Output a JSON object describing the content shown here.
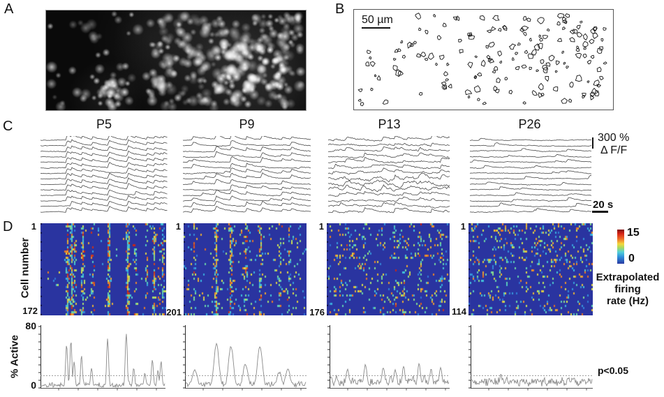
{
  "panels": {
    "a": {
      "label": "A"
    },
    "b": {
      "label": "B",
      "scale_bar_label": "50 µm"
    },
    "c": {
      "label": "C",
      "titles": [
        "P5",
        "P9",
        "P13",
        "P26"
      ],
      "y_scale_value": "300 %",
      "y_scale_unit": "Δ F/F",
      "x_scale_label": "20 s"
    },
    "d": {
      "label": "D",
      "y_axis_label": "Cell number",
      "heatmaps": [
        {
          "age": "P5",
          "top_cell": "1",
          "bottom_cell": "172"
        },
        {
          "age": "P9",
          "top_cell": "1",
          "bottom_cell": "201"
        },
        {
          "age": "P13",
          "top_cell": "1",
          "bottom_cell": "176"
        },
        {
          "age": "P26",
          "top_cell": "1",
          "bottom_cell": "114"
        }
      ],
      "colorbar": {
        "max": "15",
        "min": "0",
        "label_lines": [
          "Extrapolated",
          "firing",
          "rate (Hz)"
        ]
      }
    },
    "activity": {
      "y_top": "80",
      "y_bottom": "0",
      "y_label": "% Active",
      "sig_label": "p<0.05"
    }
  },
  "colors": {
    "heatmap_base": "#2a34a0",
    "trace": "#3f3f3f",
    "activity_line": "#8a8a8a",
    "threshold": "#9a9a9a",
    "axis": "#2b2b2b"
  },
  "chart_data": {
    "type": "heatmap",
    "groups": [
      "P5",
      "P9",
      "P13",
      "P26"
    ],
    "cells_per_group": [
      172,
      201,
      176,
      114
    ],
    "colorbar": {
      "label": "Extrapolated firing rate (Hz)",
      "min": 0,
      "max": 15
    },
    "trace_scale": {
      "y": "300 % ΔF/F",
      "x": "20 s"
    },
    "active_plot": {
      "ylabel": "% Active",
      "ylim": [
        0,
        80
      ],
      "threshold_pct": 16,
      "significance": "p<0.05"
    }
  },
  "render": {
    "groups": [
      {
        "name": "P5",
        "events": [
          [
            0.21,
            0.75
          ],
          [
            0.245,
            0.8
          ],
          [
            0.27,
            0.45
          ],
          [
            0.33,
            0.55
          ],
          [
            0.41,
            0.35
          ],
          [
            0.54,
            0.85
          ],
          [
            0.69,
            0.95
          ],
          [
            0.75,
            0.35
          ],
          [
            0.84,
            0.25
          ],
          [
            0.9,
            0.5
          ],
          [
            0.945,
            0.3
          ],
          [
            0.97,
            0.45
          ]
        ],
        "sync": 0.55,
        "speckle": 0.012,
        "rowActProb": 0.12,
        "traceSync": 0.92,
        "traceNoise": 0.7,
        "wander": 0.5,
        "rowEvents": 0,
        "peakWidth": 2,
        "peakScale": 0.95,
        "baseActive": 4,
        "bumps": 8,
        "bumpAmp": 8
      },
      {
        "name": "P9",
        "events": [
          [
            0.08,
            0.35
          ],
          [
            0.26,
            0.85
          ],
          [
            0.38,
            0.8
          ],
          [
            0.5,
            0.45
          ],
          [
            0.62,
            0.8
          ],
          [
            0.78,
            0.3
          ],
          [
            0.85,
            0.35
          ]
        ],
        "sync": 0.45,
        "speckle": 0.04,
        "rowActProb": 0.3,
        "traceSync": 0.75,
        "traceNoise": 0.8,
        "wander": 0.7,
        "rowEvents": 1,
        "peakWidth": 5,
        "peakScale": 0.85,
        "baseActive": 5,
        "bumps": 8,
        "bumpAmp": 10
      },
      {
        "name": "P13",
        "events": [
          [
            0.15,
            0.35
          ],
          [
            0.3,
            0.45
          ],
          [
            0.45,
            0.4
          ],
          [
            0.55,
            0.35
          ],
          [
            0.62,
            0.4
          ],
          [
            0.75,
            0.45
          ],
          [
            0.85,
            0.35
          ],
          [
            0.93,
            0.4
          ]
        ],
        "sync": 0.22,
        "speckle": 0.06,
        "rowActProb": 0.3,
        "traceSync": 0.4,
        "traceNoise": 1.1,
        "wander": 1.3,
        "rowEvents": 4,
        "peakWidth": 3,
        "peakScale": 0.85,
        "baseActive": 8,
        "bumps": 18,
        "bumpAmp": 14
      },
      {
        "name": "P26",
        "events": [
          [
            0.25,
            0.3
          ],
          [
            0.55,
            0.2
          ],
          [
            0.8,
            0.2
          ]
        ],
        "sync": 0.05,
        "speckle": 0.1,
        "rowActProb": 0.15,
        "traceSync": 0.1,
        "traceNoise": 0.7,
        "wander": 0.6,
        "rowEvents": 2,
        "peakWidth": 2,
        "peakScale": 0.8,
        "baseActive": 9,
        "bumps": 20,
        "bumpAmp": 8
      }
    ]
  }
}
